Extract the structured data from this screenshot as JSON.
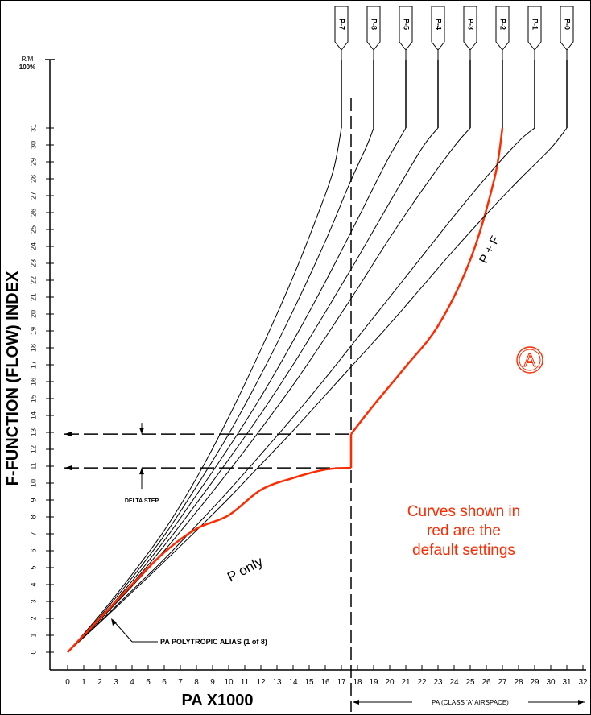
{
  "chart_data": {
    "type": "line",
    "xlabel": "PA X1000",
    "ylabel": "F-FUNCTION (FLOW) INDEX",
    "y_top_label_line1": "R/M",
    "y_top_label_line2": "100%",
    "x_ticks": [
      0,
      1,
      2,
      3,
      4,
      5,
      6,
      7,
      8,
      9,
      10,
      11,
      12,
      13,
      14,
      15,
      16,
      17,
      18,
      19,
      20,
      21,
      22,
      23,
      24,
      25,
      26,
      27,
      28,
      29,
      30,
      31,
      32
    ],
    "y_ticks": [
      0,
      1,
      2,
      3,
      4,
      5,
      6,
      7,
      8,
      9,
      10,
      11,
      12,
      13,
      14,
      15,
      16,
      17,
      18,
      19,
      20,
      21,
      22,
      23,
      24,
      25,
      26,
      27,
      28,
      29,
      30,
      31
    ],
    "xlim": [
      0,
      32
    ],
    "ylim": [
      0,
      31
    ],
    "grid": false,
    "vertical_line_x": 17.6,
    "delta_step_y": [
      10.9,
      12.9
    ],
    "delta_step_label": "DELTA STEP",
    "alias_label": "PA POLYTROPIC ALIAS (1 of 8)",
    "airspace_label": "PA (CLASS 'A' AIRSPACE)",
    "default_color": "#ff2a00",
    "series": [
      {
        "name": "P-7",
        "x_top": 17.0,
        "points": [
          [
            0,
            0
          ],
          [
            2,
            2.2
          ],
          [
            4,
            4.6
          ],
          [
            6,
            7.2
          ],
          [
            8,
            10.3
          ],
          [
            10,
            13.9
          ],
          [
            12,
            17.9
          ],
          [
            14,
            22.2
          ],
          [
            15.5,
            25.8
          ],
          [
            16.5,
            28.5
          ],
          [
            17,
            31
          ]
        ]
      },
      {
        "name": "P-8",
        "x_top": 19.0,
        "points": [
          [
            0,
            0
          ],
          [
            2,
            2.1
          ],
          [
            4,
            4.4
          ],
          [
            6,
            6.9
          ],
          [
            8,
            9.8
          ],
          [
            10,
            12.9
          ],
          [
            12,
            16.4
          ],
          [
            14,
            20.2
          ],
          [
            16,
            24.3
          ],
          [
            17.5,
            27.7
          ],
          [
            18.6,
            30
          ],
          [
            19,
            31
          ]
        ]
      },
      {
        "name": "P-5",
        "x_top": 21.0,
        "points": [
          [
            0,
            0
          ],
          [
            2,
            2.0
          ],
          [
            4,
            4.2
          ],
          [
            6,
            6.6
          ],
          [
            8,
            9.3
          ],
          [
            10,
            12.1
          ],
          [
            12,
            15.1
          ],
          [
            14,
            18.4
          ],
          [
            16,
            21.9
          ],
          [
            18,
            25.6
          ],
          [
            19.8,
            29
          ],
          [
            21,
            31
          ]
        ]
      },
      {
        "name": "P-4",
        "x_top": 23.0,
        "points": [
          [
            0,
            0
          ],
          [
            2,
            1.95
          ],
          [
            4,
            4.05
          ],
          [
            6,
            6.3
          ],
          [
            8,
            8.8
          ],
          [
            10,
            11.4
          ],
          [
            12,
            14.1
          ],
          [
            14,
            17.0
          ],
          [
            16,
            20.1
          ],
          [
            18,
            23.3
          ],
          [
            20,
            26.6
          ],
          [
            22,
            29.8
          ],
          [
            23,
            31
          ]
        ]
      },
      {
        "name": "P-3",
        "x_top": 25.0,
        "points": [
          [
            0,
            0
          ],
          [
            2,
            1.9
          ],
          [
            4,
            3.9
          ],
          [
            6,
            6.0
          ],
          [
            8,
            8.3
          ],
          [
            10,
            10.7
          ],
          [
            12,
            13.2
          ],
          [
            14,
            15.8
          ],
          [
            16,
            18.6
          ],
          [
            18,
            21.5
          ],
          [
            20,
            24.5
          ],
          [
            22,
            27.3
          ],
          [
            24,
            29.9
          ],
          [
            25,
            31
          ]
        ]
      },
      {
        "name": "P-2",
        "x_top": 27.0,
        "is_default": true,
        "label": "P + F",
        "points": [
          [
            17.6,
            12.9
          ],
          [
            19,
            14.6
          ],
          [
            21,
            16.9
          ],
          [
            23,
            19.3
          ],
          [
            25,
            23.2
          ],
          [
            26.5,
            28
          ],
          [
            27,
            31
          ]
        ]
      },
      {
        "name": "P-1",
        "x_top": 29.0,
        "points": [
          [
            0,
            0
          ],
          [
            2,
            1.8
          ],
          [
            4,
            3.65
          ],
          [
            6,
            5.5
          ],
          [
            8,
            7.5
          ],
          [
            10,
            9.55
          ],
          [
            12,
            11.7
          ],
          [
            14,
            13.9
          ],
          [
            16,
            16.2
          ],
          [
            18,
            18.6
          ],
          [
            20,
            21.0
          ],
          [
            22,
            23.4
          ],
          [
            24,
            25.8
          ],
          [
            26,
            28.1
          ],
          [
            28,
            30.2
          ],
          [
            29,
            31
          ]
        ]
      },
      {
        "name": "P-0",
        "x_top": 31.0,
        "points": [
          [
            0,
            0
          ],
          [
            2,
            1.75
          ],
          [
            4,
            3.55
          ],
          [
            6,
            5.35
          ],
          [
            8,
            7.2
          ],
          [
            10,
            9.1
          ],
          [
            12,
            11.1
          ],
          [
            14,
            13.1
          ],
          [
            16,
            15.2
          ],
          [
            18,
            17.3
          ],
          [
            20,
            19.4
          ],
          [
            22,
            21.6
          ],
          [
            24,
            23.8
          ],
          [
            26,
            25.9
          ],
          [
            28,
            27.9
          ],
          [
            30,
            29.8
          ],
          [
            31,
            31
          ]
        ]
      }
    ],
    "p_only": {
      "label": "P only",
      "points": [
        [
          0,
          0
        ],
        [
          2,
          2.0
        ],
        [
          4,
          4.0
        ],
        [
          6,
          5.9
        ],
        [
          8,
          7.3
        ],
        [
          10,
          8.1
        ],
        [
          12,
          9.6
        ],
        [
          14,
          10.3
        ],
        [
          16,
          10.8
        ],
        [
          17.6,
          10.9
        ]
      ]
    }
  },
  "note_lines": [
    "Curves shown in",
    "red are the",
    "default settings"
  ],
  "logo_letter": "A"
}
